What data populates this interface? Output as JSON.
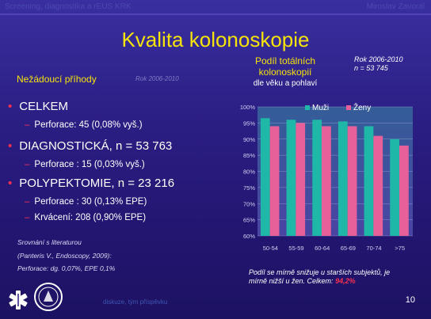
{
  "header": {
    "left": "Screening, diagnostika a rEUS KRK",
    "right": "Miroslav Zavoral"
  },
  "slide": {
    "title": "Kvalita kolonoskopie",
    "page_number": "10",
    "footer_text": "diskuze, tým příspěvku"
  },
  "section": {
    "heading": "Nežádoucí příhody",
    "heading_note": "Rok 2006-2010"
  },
  "items": {
    "celkem": "CELKEM",
    "celkem_perf": "Perforace: 45 (0,08% vyš.)",
    "diag": "DIAGNOSTICKÁ, n = 53 763",
    "diag_perf": "Perforace : 15 (0,03% vyš.)",
    "poly": "POLYPEKTOMIE, n = 23 216",
    "poly_perf": "Perforace : 30 (0,13% EPE)",
    "poly_krv": "Krvácení: 208 (0,90% EPE)"
  },
  "literature": {
    "line1": "Srovnání s literaturou",
    "line2": "(Panteris V., Endoscopy, 2009):",
    "line3": "Perforace: dg. 0,07%, EPE 0,1%"
  },
  "chart_note": {
    "line1": "Rok 2006-2010",
    "line2": "n = 53 745"
  },
  "chart_footnote": {
    "line1": "Podíl se mírně snižuje u starších subjektů, je",
    "line2_prefix": "mírně nižší u žen. Celkem:",
    "line2_value": "94,2%"
  },
  "colors": {
    "male": "#1fb8a8",
    "female": "#e8609a",
    "accent": "#f5e30a",
    "bullet": "#ff3050"
  },
  "chart_data": {
    "type": "bar",
    "title": "Podíl totálních kolonoskopií",
    "subtitle": "dle věku a pohlaví",
    "categories": [
      "50-54",
      "55-59",
      "60-64",
      "65-69",
      "70-74",
      ">75"
    ],
    "series": [
      {
        "name": "Muži",
        "values": [
          96.5,
          96,
          96,
          95.5,
          94,
          90
        ]
      },
      {
        "name": "Ženy",
        "values": [
          94,
          95,
          94,
          94,
          91,
          88
        ]
      }
    ],
    "ylim": [
      60,
      100
    ],
    "yticks": [
      "100%",
      "95%",
      "90%",
      "85%",
      "80%",
      "75%",
      "70%",
      "65%",
      "60%"
    ],
    "grid": true,
    "legend": "top-right"
  }
}
